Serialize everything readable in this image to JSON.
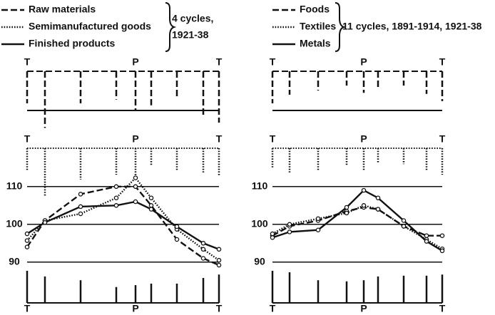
{
  "chart_data": [
    {
      "type": "line",
      "categories": [
        "T",
        null,
        null,
        null,
        "P",
        null,
        null,
        null,
        "T"
      ],
      "note": [
        "4 cycles,",
        "1921-38"
      ],
      "ylim": [
        86,
        115
      ],
      "yticks": [
        90,
        100,
        110
      ],
      "grid": true,
      "series": [
        {
          "name": "Raw materials",
          "color": "#111111",
          "dash": "dashed",
          "values": [
            94,
            101,
            108,
            110,
            110,
            105,
            96,
            91,
            89.2
          ],
          "spread": [
            8.5,
            15,
            8.5,
            7.5,
            10.4,
            9,
            7,
            11.7,
            13.6
          ]
        },
        {
          "name": "Semimanufactured goods",
          "color": "#111111",
          "dash": "dotted",
          "values": [
            95.7,
            101,
            102.8,
            107,
            112.3,
            107,
            98.7,
            93.4,
            90.5
          ],
          "spread": [
            6,
            12.6,
            8.3,
            7,
            8,
            4.5,
            6,
            6.4,
            7.4
          ]
        },
        {
          "name": "Finished products",
          "color": "#111111",
          "dash": "solid",
          "values": [
            97.5,
            100.5,
            104.7,
            105,
            106,
            104,
            99.4,
            95,
            93.4
          ],
          "spread": [
            8.5,
            7,
            6,
            4.2,
            4.7,
            5.1,
            5.1,
            6.6,
            7.5
          ]
        }
      ]
    },
    {
      "type": "line",
      "categories": [
        "T",
        null,
        null,
        null,
        "P",
        null,
        null,
        null,
        "T"
      ],
      "note": [
        "11 cycles, 1891-1914, 1921-38"
      ],
      "ylim": [
        86,
        115
      ],
      "yticks": [
        90,
        100,
        110
      ],
      "grid": true,
      "series": [
        {
          "name": "Foods",
          "color": "#111111",
          "dash": "dashed",
          "values": [
            97,
            99.5,
            101,
            103.5,
            104.5,
            104,
            99.5,
            97,
            97
          ],
          "spread": [
            8.5,
            6.2,
            5.1,
            3.8,
            5.7,
            4.7,
            3.8,
            6,
            7.9
          ]
        },
        {
          "name": "Textiles",
          "color": "#111111",
          "dash": "dotted",
          "values": [
            97.5,
            100,
            101.5,
            103,
            105,
            104,
            99.5,
            96,
            93.5
          ],
          "spread": [
            5.3,
            6.4,
            6,
            4.5,
            6,
            3.8,
            4.2,
            6,
            7
          ]
        },
        {
          "name": "Metals",
          "color": "#111111",
          "dash": "solid",
          "values": [
            96.5,
            98,
            98.5,
            104.5,
            109,
            107,
            101,
            95.5,
            93
          ],
          "spread": [
            8.5,
            8.1,
            6,
            5.7,
            6,
            7,
            7.2,
            7.2,
            7.5
          ]
        }
      ]
    }
  ]
}
